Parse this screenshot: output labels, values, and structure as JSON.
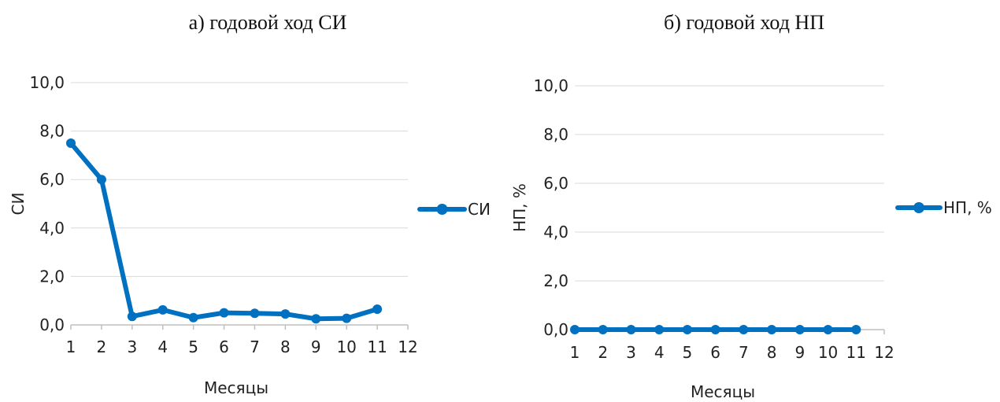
{
  "chart_data": [
    {
      "type": "line",
      "title": "а) годовой ход СИ",
      "xlabel": "Месяцы",
      "ylabel": "СИ",
      "xlim": [
        1,
        12
      ],
      "ylim": [
        0,
        10
      ],
      "x_ticks": [
        "1",
        "2",
        "3",
        "4",
        "5",
        "6",
        "7",
        "8",
        "9",
        "10",
        "11",
        "12"
      ],
      "y_ticks": [
        "0,0",
        "2,0",
        "4,0",
        "6,0",
        "8,0",
        "10,0"
      ],
      "grid": true,
      "legend": "right",
      "series": [
        {
          "name": "СИ",
          "color": "#0070C0",
          "x": [
            1,
            2,
            3,
            4,
            5,
            6,
            7,
            8,
            9,
            10,
            11
          ],
          "values": [
            7.5,
            6.0,
            0.35,
            0.62,
            0.3,
            0.5,
            0.48,
            0.45,
            0.25,
            0.27,
            0.65
          ]
        }
      ]
    },
    {
      "type": "line",
      "title": "б) годовой ход НП",
      "xlabel": "Месяцы",
      "ylabel": "НП, %",
      "xlim": [
        1,
        12
      ],
      "ylim": [
        0,
        10
      ],
      "x_ticks": [
        "1",
        "2",
        "3",
        "4",
        "5",
        "6",
        "7",
        "8",
        "9",
        "10",
        "11",
        "12"
      ],
      "y_ticks": [
        "0,0",
        "2,0",
        "4,0",
        "6,0",
        "8,0",
        "10,0"
      ],
      "grid": true,
      "legend": "right",
      "series": [
        {
          "name": "НП, %",
          "color": "#0070C0",
          "x": [
            1,
            2,
            3,
            4,
            5,
            6,
            7,
            8,
            9,
            10,
            11
          ],
          "values": [
            0,
            0,
            0,
            0,
            0,
            0,
            0,
            0,
            0,
            0,
            0
          ]
        }
      ]
    }
  ]
}
